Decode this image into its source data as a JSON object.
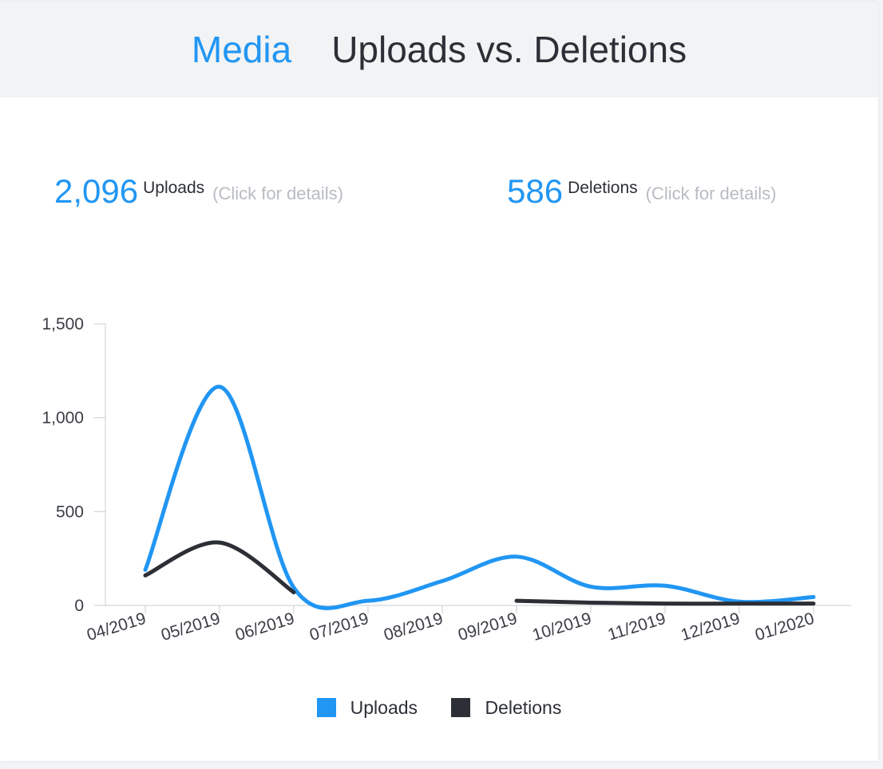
{
  "header": {
    "section": "Media",
    "title": "Uploads vs. Deletions"
  },
  "stats": {
    "uploads": {
      "value": "2,096",
      "label": "Uploads",
      "hint": "(Click for details)"
    },
    "deletions": {
      "value": "586",
      "label": "Deletions",
      "hint": "(Click for details)"
    }
  },
  "colors": {
    "accent": "#2196f3",
    "dark": "#2c2f36",
    "muted": "#b8bcc2"
  },
  "chart_data": {
    "type": "line",
    "categories": [
      "04/2019",
      "05/2019",
      "06/2019",
      "07/2019",
      "08/2019",
      "09/2019",
      "10/2019",
      "11/2019",
      "12/2019",
      "01/2020"
    ],
    "series": [
      {
        "name": "Uploads",
        "color": "#2196f3",
        "values": [
          190,
          1165,
          95,
          25,
          130,
          260,
          100,
          105,
          20,
          45
        ]
      },
      {
        "name": "Deletions",
        "color": "#2c2f36",
        "values": [
          160,
          335,
          70,
          null,
          null,
          25,
          15,
          10,
          10,
          10
        ]
      }
    ],
    "yticks": [
      "0",
      "500",
      "1,000",
      "1,500"
    ],
    "ytick_values": [
      0,
      500,
      1000,
      1500
    ],
    "ylim": [
      0,
      1500
    ],
    "grid": false,
    "legend": "bottom"
  }
}
